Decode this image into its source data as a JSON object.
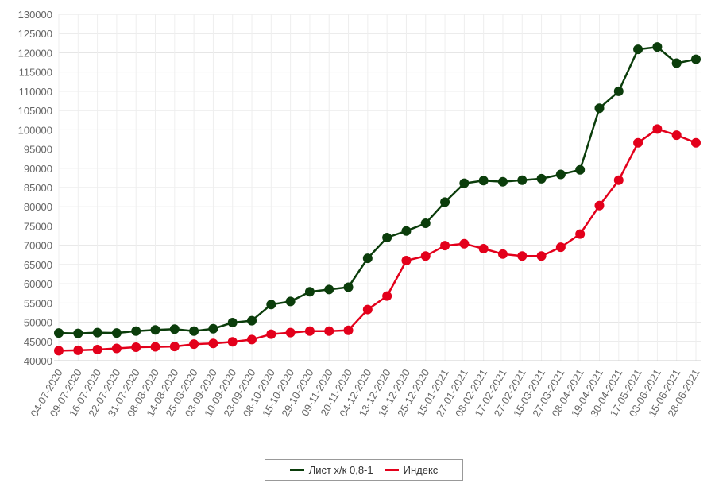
{
  "chart_data": {
    "type": "line",
    "title": "",
    "xlabel": "",
    "ylabel": "",
    "ylim": [
      40000,
      130000
    ],
    "ytick_step": 5000,
    "grid": true,
    "legend_position": "bottom",
    "categories": [
      "04-07-2020",
      "09-07-2020",
      "16-07-2020",
      "22-07-2020",
      "31-07-2020",
      "08-08-2020",
      "14-08-2020",
      "25-08-2020",
      "03-09-2020",
      "10-09-2020",
      "23-09-2020",
      "08-10-2020",
      "15-10-2020",
      "29-10-2020",
      "09-11-2020",
      "20-11-2020",
      "04-12-2020",
      "13-12-2020",
      "19-12-2020",
      "25-12-2020",
      "15-01-2021",
      "27-01-2021",
      "08-02-2021",
      "17-02-2021",
      "27-02-2021",
      "15-03-2021",
      "27-03-2021",
      "08-04-2021",
      "19-04-2021",
      "30-04-2021",
      "17-05-2021",
      "03-06-2021",
      "15-06-2021",
      "28-06-2021"
    ],
    "series": [
      {
        "name": "Лист х/к 0,8-1",
        "color": "#0b3d0b",
        "values": [
          47200,
          47100,
          47300,
          47200,
          47700,
          48000,
          48200,
          47700,
          48300,
          49900,
          50400,
          54600,
          55400,
          57900,
          58500,
          59100,
          66600,
          72000,
          73700,
          75700,
          81200,
          86100,
          86800,
          86500,
          86900,
          87300,
          88400,
          89600,
          105600,
          110000,
          120900,
          121500,
          117300,
          118300
        ]
      },
      {
        "name": "Индекс",
        "color": "#e3001b",
        "values": [
          42600,
          42700,
          42900,
          43200,
          43500,
          43600,
          43700,
          44300,
          44500,
          44900,
          45500,
          46900,
          47300,
          47700,
          47700,
          47900,
          53300,
          56800,
          66000,
          67200,
          69900,
          70400,
          69100,
          67700,
          67200,
          67200,
          69500,
          72900,
          80300,
          86900,
          96600,
          100200,
          98600,
          96600
        ]
      }
    ]
  }
}
